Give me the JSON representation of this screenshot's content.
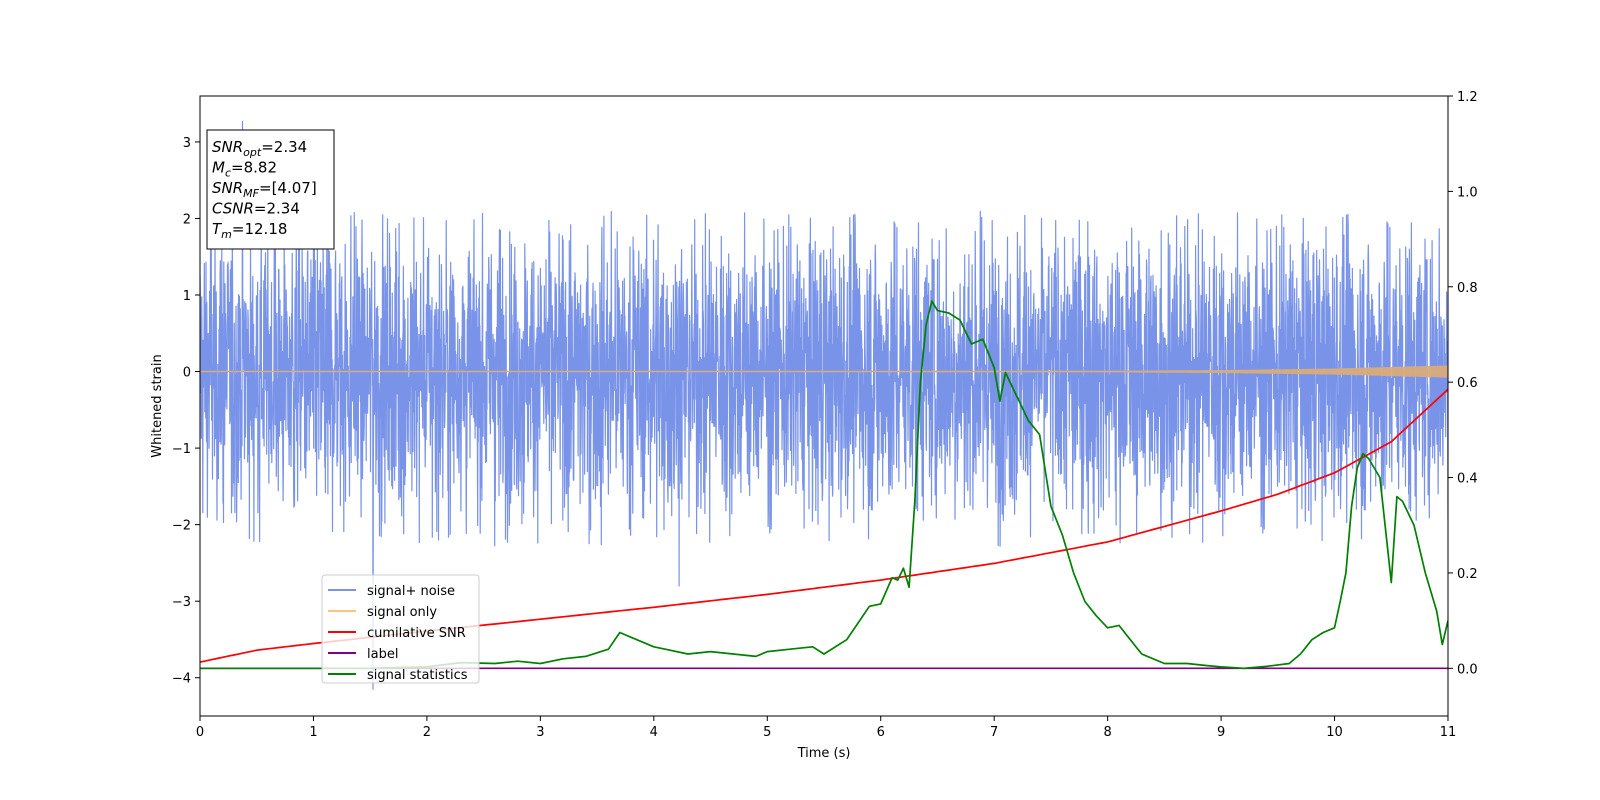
{
  "chart_data": {
    "type": "line",
    "title": "",
    "xlabel": "Time (s)",
    "ylabel": "Whitened strain",
    "xlim": [
      0,
      11
    ],
    "ylim": [
      -4.5,
      3.6
    ],
    "y2lim": [
      -0.1,
      1.2
    ],
    "x_ticks": [
      0,
      1,
      2,
      3,
      4,
      5,
      6,
      7,
      8,
      9,
      10,
      11
    ],
    "y_ticks": [
      -4,
      -3,
      -2,
      -1,
      0,
      1,
      2,
      3
    ],
    "y2_ticks": [
      0.0,
      0.2,
      0.4,
      0.6,
      0.8,
      1.0,
      1.2
    ],
    "x_tick_labels": [
      "0",
      "1",
      "2",
      "3",
      "4",
      "5",
      "6",
      "7",
      "8",
      "9",
      "10",
      "11"
    ],
    "y_tick_labels": [
      "−4",
      "−3",
      "−2",
      "−1",
      "0",
      "1",
      "2",
      "3"
    ],
    "y2_tick_labels": [
      "0.0",
      "0.2",
      "0.4",
      "0.6",
      "0.8",
      "1.0",
      "1.2"
    ],
    "grid": false,
    "legend_position": "lower-left",
    "annotation": {
      "lines": [
        {
          "sym": "SNR",
          "sub": "opt",
          "val": "=2.34"
        },
        {
          "sym": "M",
          "sub": "c",
          "val": "=8.82"
        },
        {
          "sym": "SNR",
          "sub": "MF",
          "val": "=[4.07]"
        },
        {
          "sym": "CSNR",
          "sub": "",
          "val": "=2.34"
        },
        {
          "sym": "T",
          "sub": "m",
          "val": "=12.18"
        }
      ]
    },
    "series": [
      {
        "name": "signal+ noise",
        "axis": "left",
        "color": "#7893e8",
        "description_values": "white noise, approx. amplitude",
        "amplitude_range": [
          -2.3,
          2.1
        ],
        "peak_max": 3.27,
        "peak_min": -4.15
      },
      {
        "name": "signal only",
        "axis": "left",
        "color": "#f5c77e",
        "x": [
          0,
          8,
          9,
          10,
          10.5,
          11
        ],
        "amplitude": [
          0.0,
          0.01,
          0.02,
          0.04,
          0.06,
          0.08
        ]
      },
      {
        "name": "cumilative SNR",
        "axis": "right",
        "color": "#ff0000",
        "x": [
          0,
          0.5,
          1,
          2,
          3,
          4,
          5,
          6,
          7,
          8,
          9,
          9.5,
          10,
          10.5,
          11
        ],
        "y": [
          0.013,
          0.038,
          0.052,
          0.078,
          0.103,
          0.128,
          0.155,
          0.185,
          0.22,
          0.265,
          0.33,
          0.365,
          0.41,
          0.475,
          0.585
        ]
      },
      {
        "name": "label",
        "axis": "right",
        "color": "#800080",
        "x": [
          0,
          11
        ],
        "y": [
          0,
          0
        ]
      },
      {
        "name": "signal statistics",
        "axis": "right",
        "color": "#008000",
        "x": [
          0,
          0.5,
          1,
          1.5,
          2,
          2.3,
          2.6,
          2.8,
          3.0,
          3.2,
          3.4,
          3.6,
          3.7,
          3.8,
          4.0,
          4.1,
          4.3,
          4.5,
          4.7,
          4.9,
          5.0,
          5.2,
          5.4,
          5.5,
          5.7,
          5.9,
          6.0,
          6.1,
          6.15,
          6.2,
          6.25,
          6.3,
          6.35,
          6.4,
          6.45,
          6.5,
          6.6,
          6.7,
          6.8,
          6.9,
          7.0,
          7.05,
          7.1,
          7.2,
          7.3,
          7.4,
          7.5,
          7.6,
          7.7,
          7.8,
          7.9,
          8.0,
          8.1,
          8.2,
          8.3,
          8.5,
          8.7,
          8.9,
          9.0,
          9.2,
          9.4,
          9.6,
          9.7,
          9.8,
          9.9,
          10.0,
          10.05,
          10.1,
          10.15,
          10.2,
          10.25,
          10.3,
          10.4,
          10.5,
          10.55,
          10.6,
          10.7,
          10.8,
          10.9,
          10.95,
          11.0
        ],
        "y": [
          0.0,
          0.0,
          0.0,
          0.0,
          0.003,
          0.012,
          0.01,
          0.015,
          0.01,
          0.02,
          0.025,
          0.04,
          0.075,
          0.065,
          0.045,
          0.04,
          0.03,
          0.035,
          0.03,
          0.025,
          0.035,
          0.04,
          0.045,
          0.03,
          0.06,
          0.13,
          0.135,
          0.19,
          0.185,
          0.21,
          0.17,
          0.35,
          0.6,
          0.72,
          0.77,
          0.75,
          0.745,
          0.73,
          0.68,
          0.69,
          0.63,
          0.56,
          0.62,
          0.57,
          0.52,
          0.49,
          0.34,
          0.28,
          0.2,
          0.14,
          0.11,
          0.085,
          0.09,
          0.06,
          0.03,
          0.01,
          0.01,
          0.005,
          0.003,
          0.0,
          0.004,
          0.01,
          0.03,
          0.06,
          0.075,
          0.085,
          0.14,
          0.2,
          0.34,
          0.42,
          0.45,
          0.44,
          0.4,
          0.18,
          0.36,
          0.35,
          0.3,
          0.2,
          0.12,
          0.05,
          0.1
        ]
      }
    ]
  }
}
